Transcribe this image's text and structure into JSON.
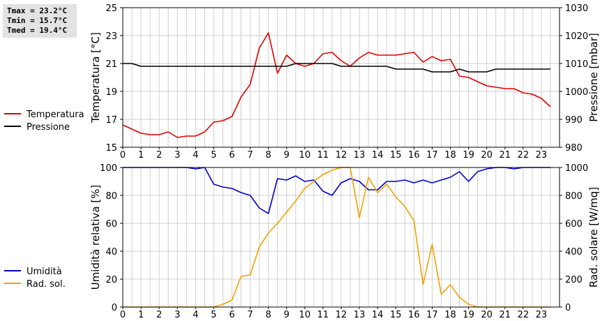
{
  "stats": [
    {
      "label": "Tmax",
      "text": "Tmax = 23.2°C"
    },
    {
      "label": "Tmin",
      "text": "Tmin = 15.7°C"
    },
    {
      "label": "Tmed",
      "text": "Tmed = 19.4°C"
    }
  ],
  "chart_data": [
    {
      "type": "line",
      "grid": true,
      "xlim": [
        0,
        24
      ],
      "xticks": [
        "0",
        "1",
        "2",
        "3",
        "4",
        "5",
        "6",
        "7",
        "8",
        "9",
        "10",
        "11",
        "12",
        "13",
        "14",
        "15",
        "16",
        "17",
        "18",
        "19",
        "20",
        "21",
        "22",
        "23"
      ],
      "y_left": {
        "label": "Temperatura [°C]",
        "lim": [
          15,
          25
        ],
        "ticks": [
          "15",
          "17",
          "19",
          "21",
          "23",
          "25"
        ]
      },
      "y_right": {
        "label": "Pressione [mbar]",
        "lim": [
          980,
          1030
        ],
        "ticks": [
          "980",
          "990",
          "1000",
          "1010",
          "1020",
          "1030"
        ]
      },
      "legend": [
        {
          "name": "Temperatura",
          "color": "#e00000"
        },
        {
          "name": "Pressione",
          "color": "#000000"
        }
      ],
      "series": [
        {
          "name": "Temperatura",
          "axis": "left",
          "color": "#e00000",
          "x": [
            0,
            0.5,
            1,
            1.5,
            2,
            2.5,
            3,
            3.5,
            4,
            4.5,
            5,
            5.5,
            6,
            6.5,
            7,
            7.5,
            8,
            8.5,
            9,
            9.5,
            10,
            10.5,
            11,
            11.5,
            12,
            12.5,
            13,
            13.5,
            14,
            14.5,
            15,
            15.5,
            16,
            16.5,
            17,
            17.5,
            18,
            18.5,
            19,
            19.5,
            20,
            20.5,
            21,
            21.5,
            22,
            22.5,
            23,
            23.5
          ],
          "y": [
            16.6,
            16.3,
            16.0,
            15.9,
            15.9,
            16.1,
            15.7,
            15.8,
            15.8,
            16.1,
            16.8,
            16.9,
            17.2,
            18.6,
            19.5,
            22.1,
            23.2,
            20.3,
            21.6,
            21.0,
            20.8,
            21.0,
            21.7,
            21.8,
            21.2,
            20.8,
            21.4,
            21.8,
            21.6,
            21.6,
            21.6,
            21.7,
            21.8,
            21.1,
            21.5,
            21.2,
            21.3,
            20.1,
            20.0,
            19.7,
            19.4,
            19.3,
            19.2,
            19.2,
            18.9,
            18.8,
            18.5,
            17.9
          ]
        },
        {
          "name": "Pressione",
          "axis": "right",
          "color": "#000000",
          "x": [
            0,
            0.5,
            1,
            1.5,
            2,
            2.5,
            3,
            3.5,
            4,
            4.5,
            5,
            5.5,
            6,
            6.5,
            7,
            7.5,
            8,
            8.5,
            9,
            9.5,
            10,
            10.5,
            11,
            11.5,
            12,
            12.5,
            13,
            13.5,
            14,
            14.5,
            15,
            15.5,
            16,
            16.5,
            17,
            17.5,
            18,
            18.5,
            19,
            19.5,
            20,
            20.5,
            21,
            21.5,
            22,
            22.5,
            23,
            23.5
          ],
          "y": [
            1010,
            1010,
            1009,
            1009,
            1009,
            1009,
            1009,
            1009,
            1009,
            1009,
            1009,
            1009,
            1009,
            1009,
            1009,
            1009,
            1009,
            1009,
            1009,
            1010,
            1010,
            1010,
            1010,
            1010,
            1009,
            1009,
            1009,
            1009,
            1009,
            1009,
            1008,
            1008,
            1008,
            1008,
            1007,
            1007,
            1007,
            1008,
            1007,
            1007,
            1007,
            1008,
            1008,
            1008,
            1008,
            1008,
            1008,
            1008
          ]
        }
      ]
    },
    {
      "type": "line",
      "grid": true,
      "xlim": [
        0,
        24
      ],
      "xticks": [
        "0",
        "1",
        "2",
        "3",
        "4",
        "5",
        "6",
        "7",
        "8",
        "9",
        "10",
        "11",
        "12",
        "13",
        "14",
        "15",
        "16",
        "17",
        "18",
        "19",
        "20",
        "21",
        "22",
        "23"
      ],
      "y_left": {
        "label": "Umidità relativa [%]",
        "lim": [
          0,
          100
        ],
        "ticks": [
          "0",
          "20",
          "40",
          "60",
          "80",
          "100"
        ]
      },
      "y_right": {
        "label": "Rad. solare [W/mq]",
        "lim": [
          0,
          1000
        ],
        "ticks": [
          "0",
          "200",
          "400",
          "600",
          "800",
          "1000"
        ]
      },
      "legend": [
        {
          "name": "Umidità",
          "color": "#0000c8"
        },
        {
          "name": "Rad. sol.",
          "color": "#f5a000"
        }
      ],
      "series": [
        {
          "name": "Umidità",
          "axis": "left",
          "color": "#0000c8",
          "x": [
            0,
            0.5,
            1,
            1.5,
            2,
            2.5,
            3,
            3.5,
            4,
            4.5,
            5,
            5.5,
            6,
            6.5,
            7,
            7.5,
            8,
            8.5,
            9,
            9.5,
            10,
            10.5,
            11,
            11.5,
            12,
            12.5,
            13,
            13.5,
            14,
            14.5,
            15,
            15.5,
            16,
            16.5,
            17,
            17.5,
            18,
            18.5,
            19,
            19.5,
            20,
            20.5,
            21,
            21.5,
            22,
            22.5,
            23,
            23.5
          ],
          "y": [
            100,
            100,
            100,
            100,
            100,
            100,
            100,
            100,
            99,
            100,
            88,
            86,
            85,
            82,
            80,
            71,
            67,
            92,
            91,
            94,
            90,
            91,
            83,
            80,
            89,
            92,
            90,
            84,
            84,
            90,
            90,
            91,
            89,
            91,
            89,
            91,
            93,
            97,
            90,
            97,
            99,
            100,
            100,
            99,
            100,
            100,
            100,
            100
          ]
        },
        {
          "name": "Rad. sol.",
          "axis": "right",
          "color": "#f5a000",
          "x": [
            0,
            0.5,
            1,
            1.5,
            2,
            2.5,
            3,
            3.5,
            4,
            4.5,
            5,
            5.5,
            6,
            6.5,
            7,
            7.5,
            8,
            8.5,
            9,
            9.5,
            10,
            10.5,
            11,
            11.5,
            12,
            12.5,
            13,
            13.5,
            14,
            14.5,
            15,
            15.5,
            16,
            16.5,
            17,
            17.5,
            18,
            18.5,
            19,
            19.5,
            20,
            20.5,
            21,
            21.5,
            22,
            22.5,
            23,
            23.5
          ],
          "y": [
            0,
            0,
            0,
            0,
            0,
            0,
            0,
            0,
            0,
            0,
            0,
            20,
            50,
            220,
            230,
            430,
            530,
            600,
            680,
            760,
            850,
            900,
            950,
            980,
            1000,
            1000,
            640,
            930,
            820,
            880,
            790,
            720,
            620,
            160,
            450,
            90,
            160,
            70,
            20,
            0,
            0,
            0,
            0,
            0,
            0,
            0,
            0,
            0
          ]
        }
      ]
    }
  ]
}
